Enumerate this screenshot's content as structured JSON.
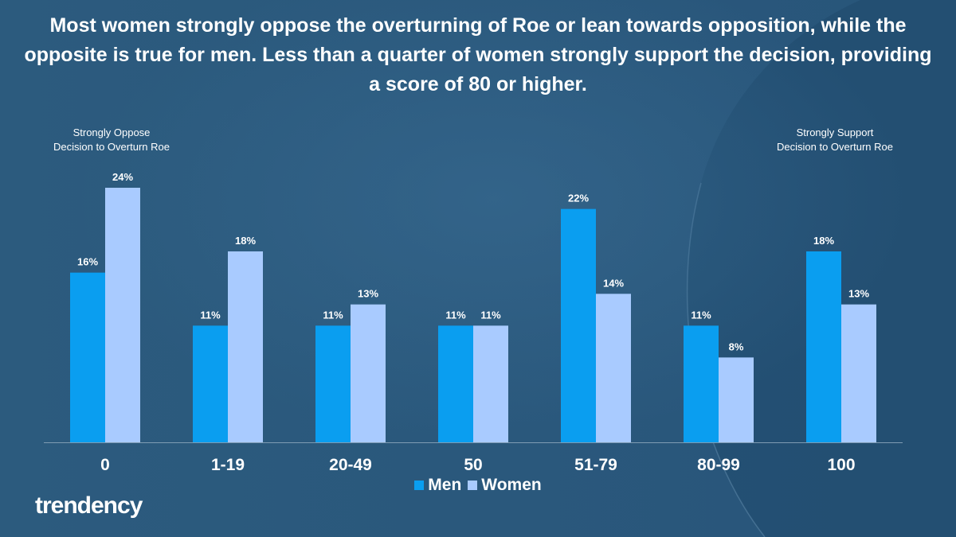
{
  "title": "Most women strongly oppose the overturning of Roe or lean towards opposition, while the opposite is true for men. Less than a quarter of women strongly support the decision, providing a score of 80 or higher.",
  "annotations": {
    "left_line1": "Strongly Oppose",
    "left_line2": "Decision to Overturn Roe",
    "right_line1": "Strongly Support",
    "right_line2": "Decision to Overturn Roe"
  },
  "logo": {
    "text": "trendency"
  },
  "colors": {
    "background": "#2b5a7c",
    "men": "#0a9ef0",
    "women": "#a9cbff",
    "axis": "#7f9cb3"
  },
  "chart_data": {
    "type": "bar",
    "categories": [
      "0",
      "1-19",
      "20-49",
      "50",
      "51-79",
      "80-99",
      "100"
    ],
    "series": [
      {
        "name": "Men",
        "values": [
          16,
          11,
          11,
          11,
          22,
          11,
          18
        ],
        "labels": [
          "16%",
          "11%",
          "11%",
          "11%",
          "22%",
          "11%",
          "18%"
        ]
      },
      {
        "name": "Women",
        "values": [
          24,
          18,
          13,
          11,
          14,
          8,
          13
        ],
        "labels": [
          "24%",
          "18%",
          "13%",
          "11%",
          "14%",
          "8%",
          "13%"
        ]
      }
    ],
    "ylim": [
      0,
      25
    ],
    "grid": false,
    "legend_position": "bottom-center",
    "xlabel": "",
    "ylabel": ""
  }
}
